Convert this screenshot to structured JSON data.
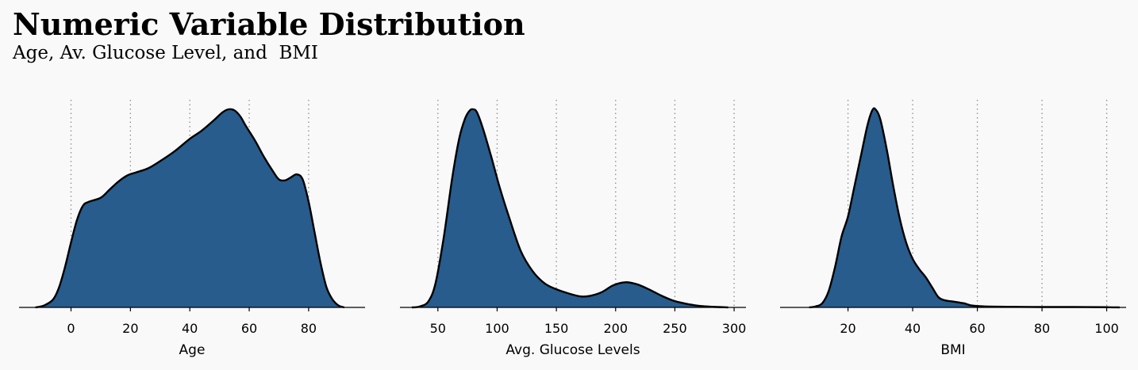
{
  "title": "Numeric Variable Distribution",
  "subtitle": "Age, Av. Glucose Level, and  BMI",
  "colors": {
    "background": "#f9f9f9",
    "fill": "#275c8c",
    "stroke": "#000000",
    "grid": "#8c8c8c"
  },
  "chart_data": [
    {
      "type": "area",
      "xlabel": "Age",
      "xlim": [
        -17.5,
        99
      ],
      "ticks": [
        0,
        20,
        40,
        60,
        80
      ],
      "grid": "vertical dotted",
      "density": [
        [
          -12,
          0
        ],
        [
          -9,
          0.01
        ],
        [
          -6,
          0.04
        ],
        [
          -4,
          0.1
        ],
        [
          -2,
          0.2
        ],
        [
          0,
          0.32
        ],
        [
          2,
          0.43
        ],
        [
          4,
          0.5
        ],
        [
          6,
          0.52
        ],
        [
          10,
          0.54
        ],
        [
          13,
          0.58
        ],
        [
          16,
          0.62
        ],
        [
          19,
          0.65
        ],
        [
          22,
          0.665
        ],
        [
          26,
          0.685
        ],
        [
          30,
          0.72
        ],
        [
          35,
          0.77
        ],
        [
          40,
          0.83
        ],
        [
          44,
          0.87
        ],
        [
          48,
          0.92
        ],
        [
          51,
          0.96
        ],
        [
          53,
          0.975
        ],
        [
          55,
          0.97
        ],
        [
          57,
          0.94
        ],
        [
          59,
          0.89
        ],
        [
          62,
          0.82
        ],
        [
          65,
          0.74
        ],
        [
          68,
          0.67
        ],
        [
          70,
          0.63
        ],
        [
          72,
          0.625
        ],
        [
          74,
          0.64
        ],
        [
          76,
          0.655
        ],
        [
          78,
          0.63
        ],
        [
          80,
          0.52
        ],
        [
          82,
          0.37
        ],
        [
          84,
          0.22
        ],
        [
          86,
          0.1
        ],
        [
          88,
          0.04
        ],
        [
          90,
          0.01
        ],
        [
          92,
          0
        ]
      ]
    },
    {
      "type": "area",
      "xlabel": "Avg. Glucose Levels",
      "xlim": [
        18,
        310
      ],
      "ticks": [
        50,
        100,
        150,
        200,
        250,
        300
      ],
      "grid": "vertical dotted",
      "density": [
        [
          28,
          0
        ],
        [
          35,
          0.005
        ],
        [
          42,
          0.03
        ],
        [
          48,
          0.12
        ],
        [
          55,
          0.35
        ],
        [
          62,
          0.64
        ],
        [
          68,
          0.84
        ],
        [
          73,
          0.94
        ],
        [
          77,
          0.98
        ],
        [
          80,
          0.985
        ],
        [
          83,
          0.97
        ],
        [
          88,
          0.89
        ],
        [
          95,
          0.75
        ],
        [
          102,
          0.6
        ],
        [
          110,
          0.45
        ],
        [
          120,
          0.28
        ],
        [
          130,
          0.18
        ],
        [
          140,
          0.12
        ],
        [
          150,
          0.09
        ],
        [
          160,
          0.07
        ],
        [
          170,
          0.055
        ],
        [
          178,
          0.057
        ],
        [
          188,
          0.075
        ],
        [
          198,
          0.11
        ],
        [
          208,
          0.125
        ],
        [
          218,
          0.115
        ],
        [
          228,
          0.09
        ],
        [
          238,
          0.06
        ],
        [
          248,
          0.035
        ],
        [
          258,
          0.02
        ],
        [
          270,
          0.008
        ],
        [
          282,
          0.003
        ],
        [
          295,
          0
        ]
      ]
    },
    {
      "type": "area",
      "xlabel": "BMI",
      "xlim": [
        -1,
        106
      ],
      "ticks": [
        20,
        40,
        60,
        80,
        100
      ],
      "grid": "vertical dotted",
      "density": [
        [
          8,
          0
        ],
        [
          10,
          0.005
        ],
        [
          12,
          0.02
        ],
        [
          14,
          0.08
        ],
        [
          16,
          0.2
        ],
        [
          18,
          0.35
        ],
        [
          20,
          0.45
        ],
        [
          22,
          0.6
        ],
        [
          24,
          0.75
        ],
        [
          26,
          0.9
        ],
        [
          27.5,
          0.975
        ],
        [
          28.5,
          0.98
        ],
        [
          30,
          0.93
        ],
        [
          32,
          0.78
        ],
        [
          34,
          0.6
        ],
        [
          36,
          0.44
        ],
        [
          38,
          0.32
        ],
        [
          40,
          0.24
        ],
        [
          42,
          0.19
        ],
        [
          44,
          0.15
        ],
        [
          46,
          0.1
        ],
        [
          48,
          0.05
        ],
        [
          50,
          0.035
        ],
        [
          52,
          0.03
        ],
        [
          54,
          0.025
        ],
        [
          56,
          0.02
        ],
        [
          58,
          0.01
        ],
        [
          62,
          0.005
        ],
        [
          70,
          0.003
        ],
        [
          80,
          0.002
        ],
        [
          90,
          0.002
        ],
        [
          100,
          0.001
        ],
        [
          104,
          0
        ]
      ]
    }
  ]
}
